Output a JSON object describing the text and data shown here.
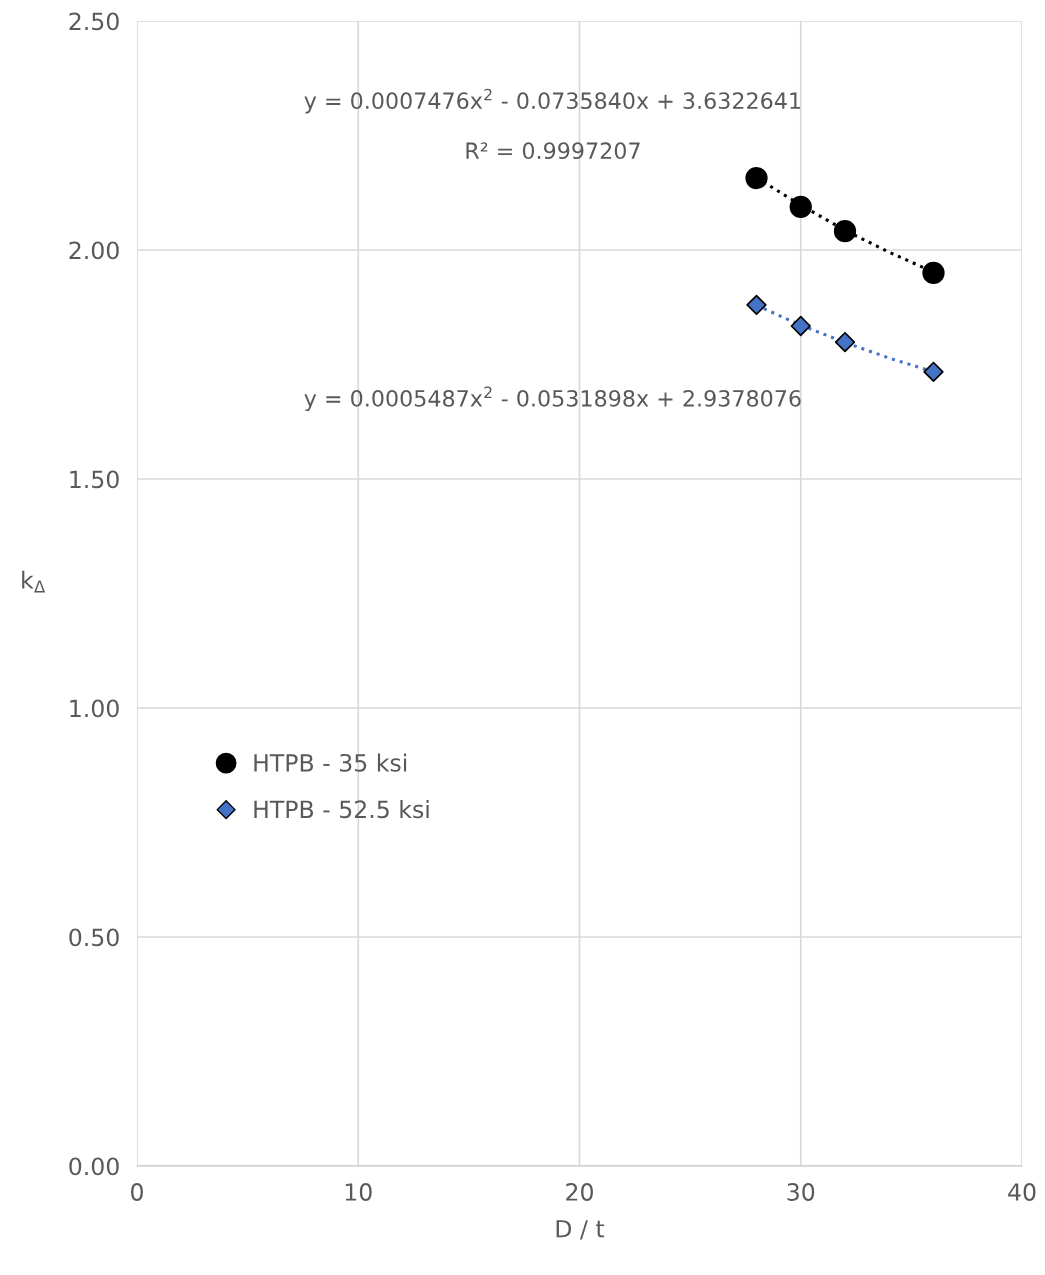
{
  "chart_data": {
    "type": "scatter",
    "xlabel": "D / t",
    "ylabel": "k$_{Δ}$",
    "xlim": [
      0,
      40
    ],
    "xticks": [
      0,
      10,
      20,
      30,
      40
    ],
    "ylim": [
      0,
      2.5
    ],
    "yticks": [
      {
        "value": 0,
        "label": "0.00"
      },
      {
        "value": 0.5,
        "label": "0.50"
      },
      {
        "value": 1,
        "label": "1.00"
      },
      {
        "value": 1.5,
        "label": "1.50"
      },
      {
        "value": 2,
        "label": "2.00"
      },
      {
        "value": 2.5,
        "label": "2.50"
      }
    ],
    "grid": true,
    "legend": "left",
    "series": [
      {
        "type": "line",
        "color": "#000000",
        "line_style": "dotted",
        "marker": "none",
        "x": [
          28,
          30,
          32,
          34,
          36
        ],
        "values": [
          2.158,
          2.098,
          2.043,
          1.995,
          1.952
        ]
      },
      {
        "type": "line",
        "color": "#4472c4",
        "line_style": "dotted",
        "marker": "none",
        "x": [
          28,
          30,
          32,
          34,
          36
        ],
        "values": [
          1.879,
          1.836,
          1.798,
          1.764,
          1.734
        ]
      },
      {
        "name": "HTPB - 35 ksi",
        "color": "#000000",
        "marker": "circle",
        "x": [
          28,
          30,
          32,
          36
        ],
        "values": [
          2.157,
          2.094,
          2.041,
          1.95
        ]
      },
      {
        "name": "HTPB - 52.5 ksi",
        "color": "#4472c4",
        "marker": "diamond",
        "x": [
          28,
          30,
          32,
          36
        ],
        "values": [
          1.88,
          1.834,
          1.799,
          1.734
        ]
      }
    ],
    "annotations": [
      "y = 0.0007476x$^{2}$ - 0.0735840x + 3.6322641",
      "R² = 0.9997207",
      "y = 0.0005487x$^{2}$ - 0.0531898x + 2.9378076"
    ]
  }
}
